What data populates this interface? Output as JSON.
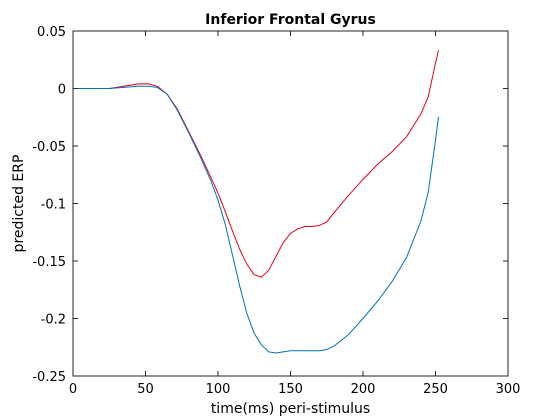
{
  "chart_data": {
    "type": "line",
    "title": "Inferior Frontal Gyrus",
    "xlabel": "time(ms) peri-stimulus",
    "ylabel": "predicted ERP",
    "xlim": [
      0,
      300
    ],
    "ylim": [
      -0.25,
      0.05
    ],
    "xticks": [
      0,
      50,
      100,
      150,
      200,
      250,
      300
    ],
    "yticks": [
      0.05,
      0,
      -0.05,
      -0.1,
      -0.15,
      -0.2,
      -0.25
    ],
    "xtick_labels": [
      "0",
      "50",
      "100",
      "150",
      "200",
      "250",
      "300"
    ],
    "ytick_labels": [
      "0.05",
      "0",
      "-0.05",
      "-0.1",
      "-0.15",
      "-0.2",
      "-0.25"
    ],
    "grid": false,
    "series": [
      {
        "color": "#e8001c",
        "x": [
          0,
          25,
          35,
          45,
          52,
          58,
          65,
          72,
          80,
          88,
          95,
          100,
          105,
          110,
          115,
          120,
          125,
          130,
          135,
          140,
          145,
          150,
          155,
          160,
          165,
          170,
          175,
          180,
          190,
          200,
          210,
          220,
          230,
          240,
          245,
          250,
          252
        ],
        "y": [
          0,
          0,
          0.002,
          0.004,
          0.004,
          0.002,
          -0.005,
          -0.018,
          -0.038,
          -0.058,
          -0.077,
          -0.091,
          -0.107,
          -0.124,
          -0.14,
          -0.153,
          -0.162,
          -0.164,
          -0.158,
          -0.146,
          -0.134,
          -0.126,
          -0.122,
          -0.12,
          -0.12,
          -0.119,
          -0.116,
          -0.108,
          -0.093,
          -0.079,
          -0.066,
          -0.055,
          -0.042,
          -0.022,
          -0.007,
          0.022,
          0.033
        ]
      },
      {
        "color": "#0072bd",
        "x": [
          0,
          25,
          35,
          45,
          52,
          58,
          65,
          72,
          80,
          88,
          95,
          100,
          105,
          110,
          115,
          120,
          125,
          130,
          135,
          140,
          145,
          150,
          155,
          160,
          165,
          170,
          175,
          180,
          190,
          200,
          210,
          220,
          230,
          240,
          245,
          250,
          252
        ],
        "y": [
          0,
          0,
          0.001,
          0.002,
          0.002,
          0.001,
          -0.005,
          -0.019,
          -0.039,
          -0.06,
          -0.08,
          -0.097,
          -0.118,
          -0.145,
          -0.172,
          -0.196,
          -0.213,
          -0.223,
          -0.229,
          -0.23,
          -0.229,
          -0.228,
          -0.228,
          -0.228,
          -0.228,
          -0.228,
          -0.227,
          -0.224,
          -0.214,
          -0.2,
          -0.185,
          -0.168,
          -0.147,
          -0.115,
          -0.09,
          -0.045,
          -0.025
        ]
      }
    ]
  }
}
